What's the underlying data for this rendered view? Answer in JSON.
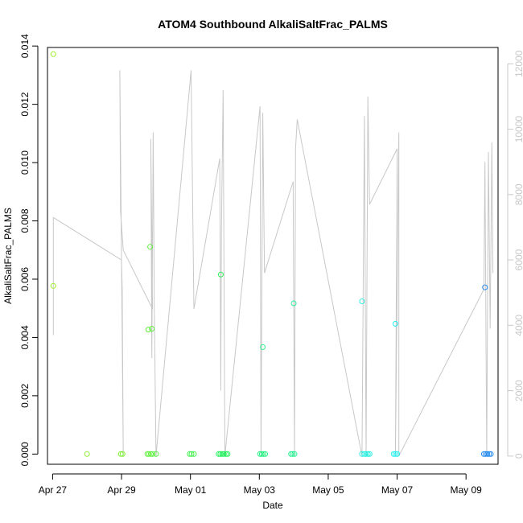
{
  "chart_data": {
    "type": "scatter",
    "title": "ATOM4 Southbound AlkaliSaltFrac_PALMS",
    "xlabel": "Date",
    "ylabel": "AlkaliSaltFrac_PALMS",
    "xlim": [
      -0.15,
      12.93
    ],
    "ylim": [
      -0.00035,
      0.01395
    ],
    "y2lim": [
      -250,
      12500
    ],
    "x_tick_labels": [
      "Apr 27",
      "Apr 29",
      "May 01",
      "May 03",
      "May 05",
      "May 07",
      "May 09"
    ],
    "x_tick_values": [
      0,
      2,
      4,
      6,
      8,
      10,
      12
    ],
    "y_tick_labels": [
      "0.000",
      "0.002",
      "0.004",
      "0.006",
      "0.008",
      "0.010",
      "0.012",
      "0.014"
    ],
    "y_tick_values": [
      0,
      0.002,
      0.004,
      0.006,
      0.008,
      0.01,
      0.012,
      0.014
    ],
    "y2_tick_labels": [
      "0",
      "2000",
      "4000",
      "6000",
      "8000",
      "10000",
      "12000"
    ],
    "y2_tick_values": [
      0,
      2000,
      4000,
      6000,
      8000,
      10000,
      12000
    ],
    "colors": {
      "line": "#c8c8c8",
      "axis": "#000000",
      "right_axis": "#c8c8c8"
    },
    "series": [
      {
        "values_note": "points",
        "points": [
          {
            "x": 0.02,
            "y": 0.01372,
            "color": "#9cf02a"
          },
          {
            "x": 0.02,
            "y": 0.00577,
            "color": "#9cf02a"
          },
          {
            "x": 1.0,
            "y": 0.0,
            "color": "#92f030"
          },
          {
            "x": 1.98,
            "y": 0.0,
            "color": "#7cf030"
          },
          {
            "x": 2.03,
            "y": 0.0,
            "color": "#7cf030"
          },
          {
            "x": 2.78,
            "y": 0.00427,
            "color": "#5ff03c"
          },
          {
            "x": 2.83,
            "y": 0.00711,
            "color": "#5ff03c"
          },
          {
            "x": 2.88,
            "y": 0.0043,
            "color": "#5ff03c"
          },
          {
            "x": 2.75,
            "y": 0.0,
            "color": "#5ff03c"
          },
          {
            "x": 2.8,
            "y": 0.0,
            "color": "#5ff03c"
          },
          {
            "x": 2.85,
            "y": 0.0,
            "color": "#5ff03c"
          },
          {
            "x": 2.9,
            "y": 0.0,
            "color": "#5ff03c"
          },
          {
            "x": 3.0,
            "y": 0.0,
            "color": "#50f040"
          },
          {
            "x": 3.98,
            "y": 0.0,
            "color": "#3cf04a"
          },
          {
            "x": 4.03,
            "y": 0.0,
            "color": "#3cf04a"
          },
          {
            "x": 4.1,
            "y": 0.0,
            "color": "#3cf04a"
          },
          {
            "x": 4.88,
            "y": 0.00616,
            "color": "#2cf058"
          },
          {
            "x": 4.82,
            "y": 0.0,
            "color": "#20f05a"
          },
          {
            "x": 4.87,
            "y": 0.0,
            "color": "#20f05a"
          },
          {
            "x": 4.92,
            "y": 0.0,
            "color": "#20f05a"
          },
          {
            "x": 4.97,
            "y": 0.0,
            "color": "#20f05a"
          },
          {
            "x": 5.03,
            "y": 0.0,
            "color": "#20f05a"
          },
          {
            "x": 5.08,
            "y": 0.0,
            "color": "#20f05a"
          },
          {
            "x": 6.1,
            "y": 0.00367,
            "color": "#30f090"
          },
          {
            "x": 6.02,
            "y": 0.0,
            "color": "#20f080"
          },
          {
            "x": 6.07,
            "y": 0.0,
            "color": "#20f080"
          },
          {
            "x": 6.12,
            "y": 0.0,
            "color": "#20f080"
          },
          {
            "x": 6.17,
            "y": 0.0,
            "color": "#20f080"
          },
          {
            "x": 7.0,
            "y": 0.00517,
            "color": "#30f0a0"
          },
          {
            "x": 6.92,
            "y": 0.0,
            "color": "#20f090"
          },
          {
            "x": 6.97,
            "y": 0.0,
            "color": "#20f090"
          },
          {
            "x": 7.02,
            "y": 0.0,
            "color": "#20f090"
          },
          {
            "x": 8.98,
            "y": 0.00524,
            "color": "#30f0e0"
          },
          {
            "x": 8.98,
            "y": 0.0,
            "color": "#20f0e0"
          },
          {
            "x": 9.05,
            "y": 0.0,
            "color": "#20f0e0"
          },
          {
            "x": 9.1,
            "y": 0.0,
            "color": "#20f0e0"
          },
          {
            "x": 9.15,
            "y": 0.0,
            "color": "#20f0e0"
          },
          {
            "x": 9.2,
            "y": 0.0,
            "color": "#20f0e0"
          },
          {
            "x": 9.95,
            "y": 0.00447,
            "color": "#20f0f0"
          },
          {
            "x": 9.9,
            "y": 0.0,
            "color": "#20f0f0"
          },
          {
            "x": 9.95,
            "y": 0.0,
            "color": "#20f0f0"
          },
          {
            "x": 10.0,
            "y": 0.0,
            "color": "#20f0f0"
          },
          {
            "x": 12.55,
            "y": 0.00572,
            "color": "#3090f0"
          },
          {
            "x": 12.52,
            "y": 0.0,
            "color": "#2088f0"
          },
          {
            "x": 12.57,
            "y": 0.0,
            "color": "#2088f0"
          },
          {
            "x": 12.62,
            "y": 0.0,
            "color": "#2088f0"
          },
          {
            "x": 12.67,
            "y": 0.0,
            "color": "#2088f0"
          },
          {
            "x": 12.72,
            "y": 0.0,
            "color": "#2088f0"
          }
        ]
      },
      {
        "line_note": "secondary",
        "line": [
          [
            0.02,
            3700
          ],
          [
            0.02,
            7300
          ],
          [
            2.0,
            6000
          ],
          [
            2.02,
            5100
          ],
          [
            2.05,
            0
          ],
          [
            1.95,
            11800
          ],
          [
            1.97,
            7500
          ],
          [
            2.05,
            6300
          ],
          [
            2.9,
            4500
          ],
          [
            2.85,
            9700
          ],
          [
            2.88,
            3000
          ],
          [
            2.92,
            9900
          ],
          [
            2.95,
            4700
          ],
          [
            3.0,
            0
          ],
          [
            4.02,
            11800
          ],
          [
            4.1,
            4500
          ],
          [
            4.85,
            9100
          ],
          [
            4.88,
            2000
          ],
          [
            4.9,
            6900
          ],
          [
            4.95,
            11200
          ],
          [
            5.0,
            0
          ],
          [
            6.02,
            10700
          ],
          [
            6.05,
            0
          ],
          [
            6.1,
            10500
          ],
          [
            6.15,
            5600
          ],
          [
            6.98,
            8400
          ],
          [
            7.02,
            0
          ],
          [
            7.05,
            9400
          ],
          [
            7.1,
            10300
          ],
          [
            8.98,
            0
          ],
          [
            9.05,
            10400
          ],
          [
            9.1,
            0
          ],
          [
            9.15,
            11000
          ],
          [
            9.2,
            7700
          ],
          [
            10.0,
            9400
          ],
          [
            9.95,
            0
          ],
          [
            10.05,
            9900
          ],
          [
            10.05,
            0
          ],
          [
            12.52,
            5100
          ],
          [
            12.55,
            9000
          ],
          [
            12.6,
            0
          ],
          [
            12.65,
            9300
          ],
          [
            12.7,
            3900
          ],
          [
            12.75,
            9600
          ],
          [
            12.78,
            5600
          ]
        ]
      }
    ]
  }
}
